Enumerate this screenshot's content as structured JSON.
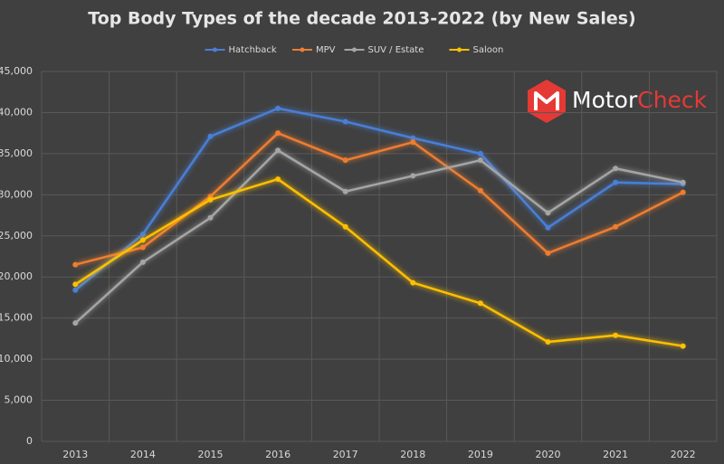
{
  "chart_data": {
    "type": "line",
    "title": "Top Body Types of the decade 2013-2022 (by New Sales)",
    "categories": [
      "2013",
      "2014",
      "2015",
      "2016",
      "2017",
      "2018",
      "2019",
      "2020",
      "2021",
      "2022"
    ],
    "series": [
      {
        "name": "Hatchback",
        "color": "#4a7fd6",
        "values": [
          18400,
          25200,
          37100,
          40500,
          38900,
          36900,
          35000,
          26000,
          31500,
          31300
        ]
      },
      {
        "name": "MPV",
        "color": "#ed7d31",
        "values": [
          21500,
          23600,
          29800,
          37500,
          34200,
          36400,
          30500,
          22900,
          26100,
          30300
        ]
      },
      {
        "name": "SUV / Estate",
        "color": "#a5a5a5",
        "values": [
          14400,
          21800,
          27200,
          35400,
          30400,
          32300,
          34200,
          27800,
          33200,
          31500
        ]
      },
      {
        "name": "Saloon",
        "color": "#ffc000",
        "values": [
          19100,
          24500,
          29400,
          31900,
          26100,
          19300,
          16800,
          12100,
          12900,
          11600
        ]
      }
    ],
    "ylim": [
      0,
      45000
    ],
    "yticks": [
      0,
      {
        "value": 5000,
        "label": "5,000"
      },
      {
        "value": 10000,
        "label": "10,000"
      },
      {
        "value": 15000,
        "label": "15,000"
      },
      {
        "value": 20000,
        "label": "20,000"
      },
      {
        "value": 25000,
        "label": "25,000"
      },
      {
        "value": 30000,
        "label": "30,000"
      },
      {
        "value": 35000,
        "label": "35,000"
      },
      {
        "value": 40000,
        "label": "40,000"
      },
      {
        "value": 45000,
        "label": "45,000"
      }
    ],
    "grid": true,
    "legend": "top",
    "logo_text": [
      "Motor",
      "Check"
    ]
  }
}
